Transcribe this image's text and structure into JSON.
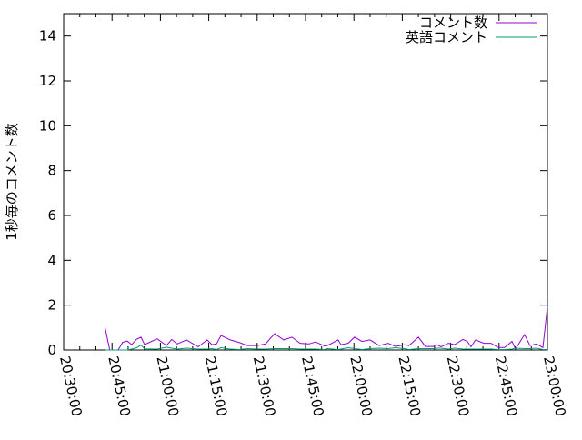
{
  "chart_data": {
    "type": "line",
    "title": "",
    "xlabel": "",
    "ylabel": "1秒毎のコメント数",
    "xlim": [
      "20:30:00",
      "23:00:00"
    ],
    "ylim": [
      0,
      15
    ],
    "x_ticks": [
      "20:30:00",
      "20:45:00",
      "21:00:00",
      "21:15:00",
      "21:30:00",
      "21:45:00",
      "22:00:00",
      "22:15:00",
      "22:30:00",
      "22:45:00",
      "23:00:00"
    ],
    "y_ticks": [
      0,
      2,
      4,
      6,
      8,
      10,
      12,
      14
    ],
    "grid": false,
    "legend_position": "top-right",
    "series": [
      {
        "name": "コメント数",
        "color": "#9400d3",
        "x": [
          "20:42:54",
          "20:44:18",
          "20:46:54",
          "20:48:18",
          "20:49:42",
          "20:51:06",
          "20:52:36",
          "20:54:00",
          "20:55:06",
          "20:59:00",
          "21:01:54",
          "21:03:30",
          "21:05:12",
          "21:08:06",
          "21:11:42",
          "21:14:30",
          "21:16:00",
          "21:17:24",
          "21:18:48",
          "21:21:36",
          "21:24:24",
          "21:26:54",
          "21:30:06",
          "21:32:36",
          "21:35:24",
          "21:38:12",
          "21:40:48",
          "21:43:18",
          "21:46:06",
          "21:48:06",
          "21:50:54",
          "21:51:48",
          "21:55:06",
          "21:56:00",
          "21:58:12",
          "22:00:12",
          "22:02:30",
          "22:05:00",
          "22:07:48",
          "22:10:36",
          "22:12:54",
          "22:15:42",
          "22:17:06",
          "22:20:00",
          "22:22:12",
          "22:24:42",
          "22:25:36",
          "22:27:00",
          "22:29:18",
          "22:31:12",
          "22:33:48",
          "22:35:12",
          "22:36:18",
          "22:37:42",
          "22:40:18",
          "22:42:30",
          "22:44:48",
          "22:46:42",
          "22:49:00",
          "22:50:06",
          "22:52:54",
          "22:54:36",
          "22:56:36",
          "22:58:36",
          "23:00:00"
        ],
        "y": [
          0.95,
          0,
          0,
          0.34,
          0.4,
          0.24,
          0.48,
          0.57,
          0.24,
          0.5,
          0.2,
          0.47,
          0.27,
          0.45,
          0.14,
          0.45,
          0.24,
          0.27,
          0.65,
          0.45,
          0.34,
          0.2,
          0.2,
          0.27,
          0.73,
          0.45,
          0.57,
          0.3,
          0.27,
          0.36,
          0.18,
          0.2,
          0.45,
          0.24,
          0.3,
          0.57,
          0.38,
          0.45,
          0.2,
          0.3,
          0.16,
          0.23,
          0.2,
          0.57,
          0.16,
          0.16,
          0.24,
          0.14,
          0.3,
          0.24,
          0.47,
          0.38,
          0.14,
          0.45,
          0.3,
          0.3,
          0.11,
          0.11,
          0.38,
          0.04,
          0.69,
          0.2,
          0.27,
          0.11,
          1.95
        ]
      },
      {
        "name": "英語コメント",
        "color": "#009e73",
        "x": [
          "20:42:54",
          "20:44:18",
          "20:46:54",
          "20:48:18",
          "20:49:42",
          "20:51:06",
          "20:52:36",
          "20:54:00",
          "20:55:06",
          "20:59:00",
          "21:01:54",
          "21:03:30",
          "21:05:12",
          "21:08:06",
          "21:11:42",
          "21:14:30",
          "21:16:00",
          "21:17:24",
          "21:18:48",
          "21:21:36",
          "21:24:24",
          "21:26:54",
          "21:30:06",
          "21:32:36",
          "21:35:24",
          "21:38:12",
          "21:40:48",
          "21:43:18",
          "21:46:06",
          "21:48:06",
          "21:50:54",
          "21:51:48",
          "21:55:06",
          "21:56:00",
          "21:58:12",
          "22:00:12",
          "22:02:30",
          "22:05:00",
          "22:07:48",
          "22:10:36",
          "22:12:54",
          "22:15:42",
          "22:17:06",
          "22:20:00",
          "22:22:12",
          "22:24:42",
          "22:25:36",
          "22:27:00",
          "22:29:18",
          "22:31:12",
          "22:33:48",
          "22:35:12",
          "22:36:18",
          "22:37:42",
          "22:40:18",
          "22:42:30",
          "22:44:48",
          "22:46:42",
          "22:49:00",
          "22:50:06",
          "22:52:54",
          "22:54:36",
          "22:56:36",
          "22:58:36",
          "23:00:00"
        ],
        "y": [
          0,
          0,
          0,
          0,
          0,
          0.04,
          0.1,
          0.22,
          0.05,
          0.04,
          0.12,
          0.08,
          0.04,
          0.08,
          0.04,
          0.04,
          0.06,
          0.02,
          0.1,
          0.04,
          0.02,
          0.06,
          0.04,
          0.04,
          0.06,
          0.06,
          0.06,
          0.04,
          0.04,
          0.04,
          0.02,
          0.06,
          0.02,
          0.04,
          0.1,
          0.06,
          0.02,
          0.06,
          0.08,
          0.06,
          0.1,
          0.06,
          0.02,
          0.06,
          0.06,
          0.06,
          0.08,
          0.08,
          0.04,
          0.08,
          0.04,
          0.04,
          0.04,
          0.04,
          0.04,
          0.04,
          0.02,
          0.02,
          0.04,
          0.08,
          0.06,
          0.06,
          0.08,
          0.02,
          0.02
        ]
      }
    ]
  }
}
